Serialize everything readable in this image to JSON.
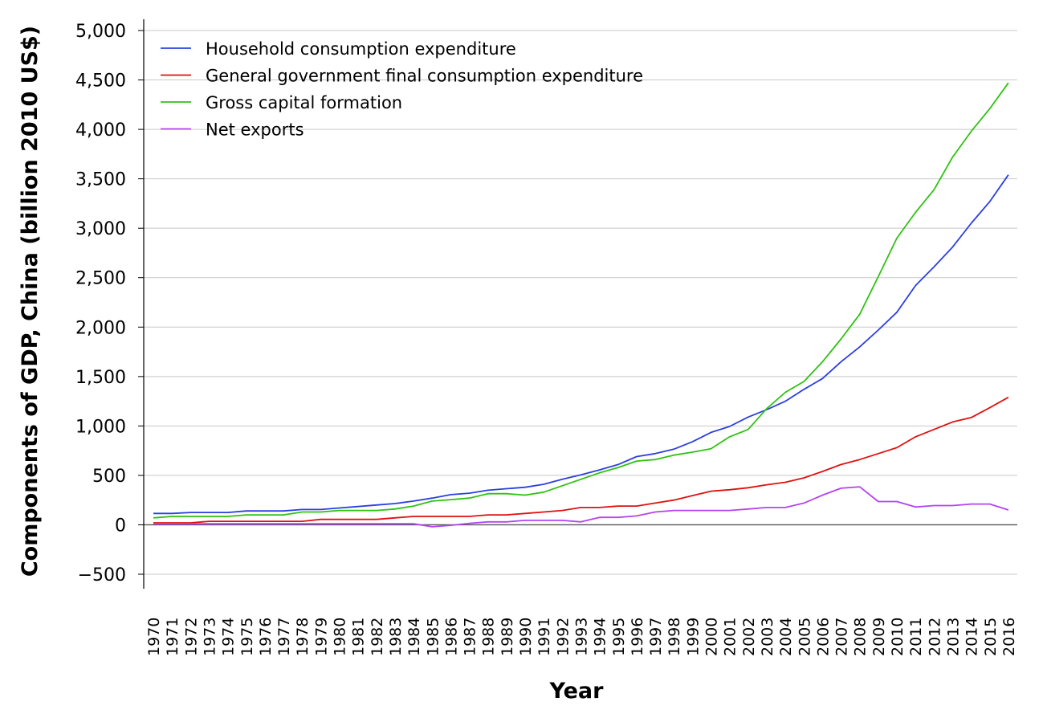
{
  "chart_data": {
    "type": "line",
    "title": "",
    "xlabel": "Year",
    "ylabel": "Components of GDP, China (billion 2010 US$)",
    "ylim": [
      -500,
      5000
    ],
    "yticks": [
      -500,
      0,
      500,
      1000,
      1500,
      2000,
      2500,
      3000,
      3500,
      4000,
      4500,
      5000
    ],
    "ytick_labels": [
      "−500",
      "0",
      "500",
      "1,000",
      "1,500",
      "2,000",
      "2,500",
      "3,000",
      "3,500",
      "4,000",
      "4,500",
      "5,000"
    ],
    "grid": "horizontal",
    "legend_position": "top-left",
    "x": [
      "1970",
      "1971",
      "1972",
      "1973",
      "1974",
      "1975",
      "1976",
      "1977",
      "1978",
      "1979",
      "1980",
      "1981",
      "1982",
      "1983",
      "1984",
      "1985",
      "1986",
      "1987",
      "1988",
      "1989",
      "1990",
      "1991",
      "1992",
      "1993",
      "1994",
      "1995",
      "1996",
      "1997",
      "1998",
      "1999",
      "2000",
      "2001",
      "2002",
      "2003",
      "2004",
      "2005",
      "2006",
      "2007",
      "2008",
      "2009",
      "2010",
      "2011",
      "2012",
      "2013",
      "2014",
      "2015",
      "2016"
    ],
    "series": [
      {
        "name": "Household consumption expenditure",
        "color": "#2b3fe0",
        "values": [
          115,
          115,
          125,
          125,
          125,
          140,
          140,
          140,
          155,
          155,
          170,
          185,
          200,
          215,
          240,
          270,
          305,
          320,
          350,
          365,
          380,
          410,
          460,
          505,
          555,
          610,
          690,
          720,
          765,
          840,
          935,
          995,
          1090,
          1165,
          1250,
          1370,
          1480,
          1650,
          1800,
          1970,
          2150,
          2420,
          2610,
          2810,
          3050,
          3270,
          3540
        ]
      },
      {
        "name": "General government final consumption expenditure",
        "color": "#e01010",
        "values": [
          20,
          20,
          20,
          35,
          35,
          35,
          35,
          35,
          35,
          55,
          55,
          55,
          55,
          70,
          85,
          85,
          85,
          85,
          100,
          100,
          115,
          130,
          145,
          175,
          175,
          190,
          190,
          220,
          250,
          295,
          340,
          355,
          375,
          405,
          430,
          475,
          540,
          610,
          660,
          720,
          780,
          890,
          965,
          1040,
          1085,
          1185,
          1290
        ]
      },
      {
        "name": "Gross capital formation",
        "color": "#2ec212",
        "values": [
          70,
          85,
          85,
          85,
          85,
          100,
          100,
          100,
          130,
          130,
          145,
          145,
          145,
          160,
          190,
          240,
          255,
          270,
          315,
          315,
          300,
          330,
          395,
          460,
          525,
          580,
          645,
          660,
          705,
          735,
          770,
          890,
          965,
          1175,
          1340,
          1450,
          1650,
          1880,
          2130,
          2510,
          2900,
          3160,
          3390,
          3720,
          3980,
          4210,
          4470
        ]
      },
      {
        "name": "Net exports",
        "color": "#b443f2",
        "values": [
          10,
          10,
          10,
          10,
          10,
          10,
          10,
          10,
          10,
          10,
          10,
          10,
          10,
          10,
          10,
          -20,
          -5,
          15,
          30,
          30,
          45,
          45,
          45,
          30,
          75,
          75,
          90,
          130,
          145,
          145,
          145,
          145,
          160,
          175,
          175,
          220,
          300,
          370,
          385,
          235,
          235,
          180,
          195,
          195,
          210,
          210,
          150
        ]
      }
    ]
  }
}
